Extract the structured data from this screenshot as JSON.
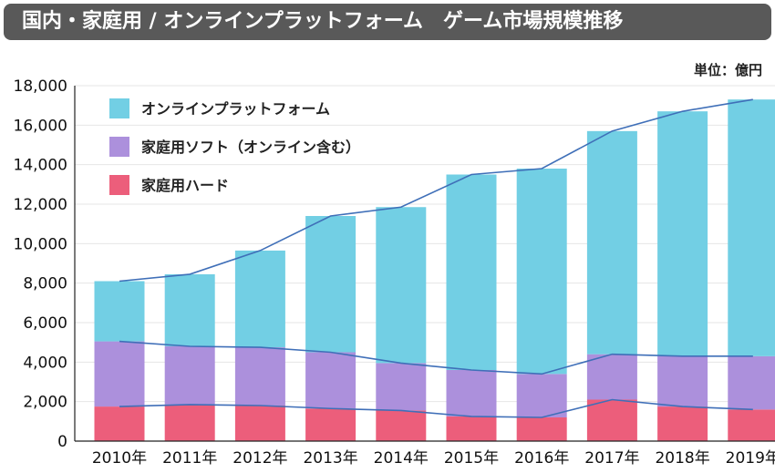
{
  "title": "国内・家庭用 / オンラインプラットフォーム　ゲーム市場規模推移",
  "unit": "単位：億円",
  "colors": {
    "online": "#72cfe4",
    "software": "#ac90dc",
    "hardware": "#ec5e7b",
    "line": "#3f6fb8",
    "title_bg": "#595959"
  },
  "chart_data": {
    "type": "bar",
    "stacked": true,
    "categories": [
      "2010年",
      "2011年",
      "2012年",
      "2013年",
      "2014年",
      "2015年",
      "2016年",
      "2017年",
      "2018年",
      "2019年"
    ],
    "series": [
      {
        "name": "家庭用ハード",
        "key": "hardware",
        "values": [
          1750,
          1850,
          1800,
          1650,
          1550,
          1250,
          1200,
          2100,
          1750,
          1600
        ]
      },
      {
        "name": "家庭用ソフト（オンライン含む）",
        "key": "software",
        "values": [
          3300,
          2950,
          2950,
          2850,
          2400,
          2350,
          2200,
          2300,
          2550,
          2700
        ]
      },
      {
        "name": "オンラインプラットフォーム",
        "key": "online",
        "values": [
          3050,
          3650,
          4900,
          6900,
          7900,
          9900,
          10400,
          11300,
          12400,
          13000
        ]
      }
    ],
    "legend_order": [
      "online",
      "software",
      "hardware"
    ],
    "ylim": [
      0,
      18000
    ],
    "yticks": [
      0,
      2000,
      4000,
      6000,
      8000,
      10000,
      12000,
      14000,
      16000,
      18000
    ],
    "ytick_labels": [
      "0",
      "2,000",
      "4,000",
      "6,000",
      "8,000",
      "10,000",
      "12,000",
      "14,000",
      "16,000",
      "18,000"
    ],
    "grid": true,
    "legend_position": "top-left",
    "connector_lines": true
  }
}
